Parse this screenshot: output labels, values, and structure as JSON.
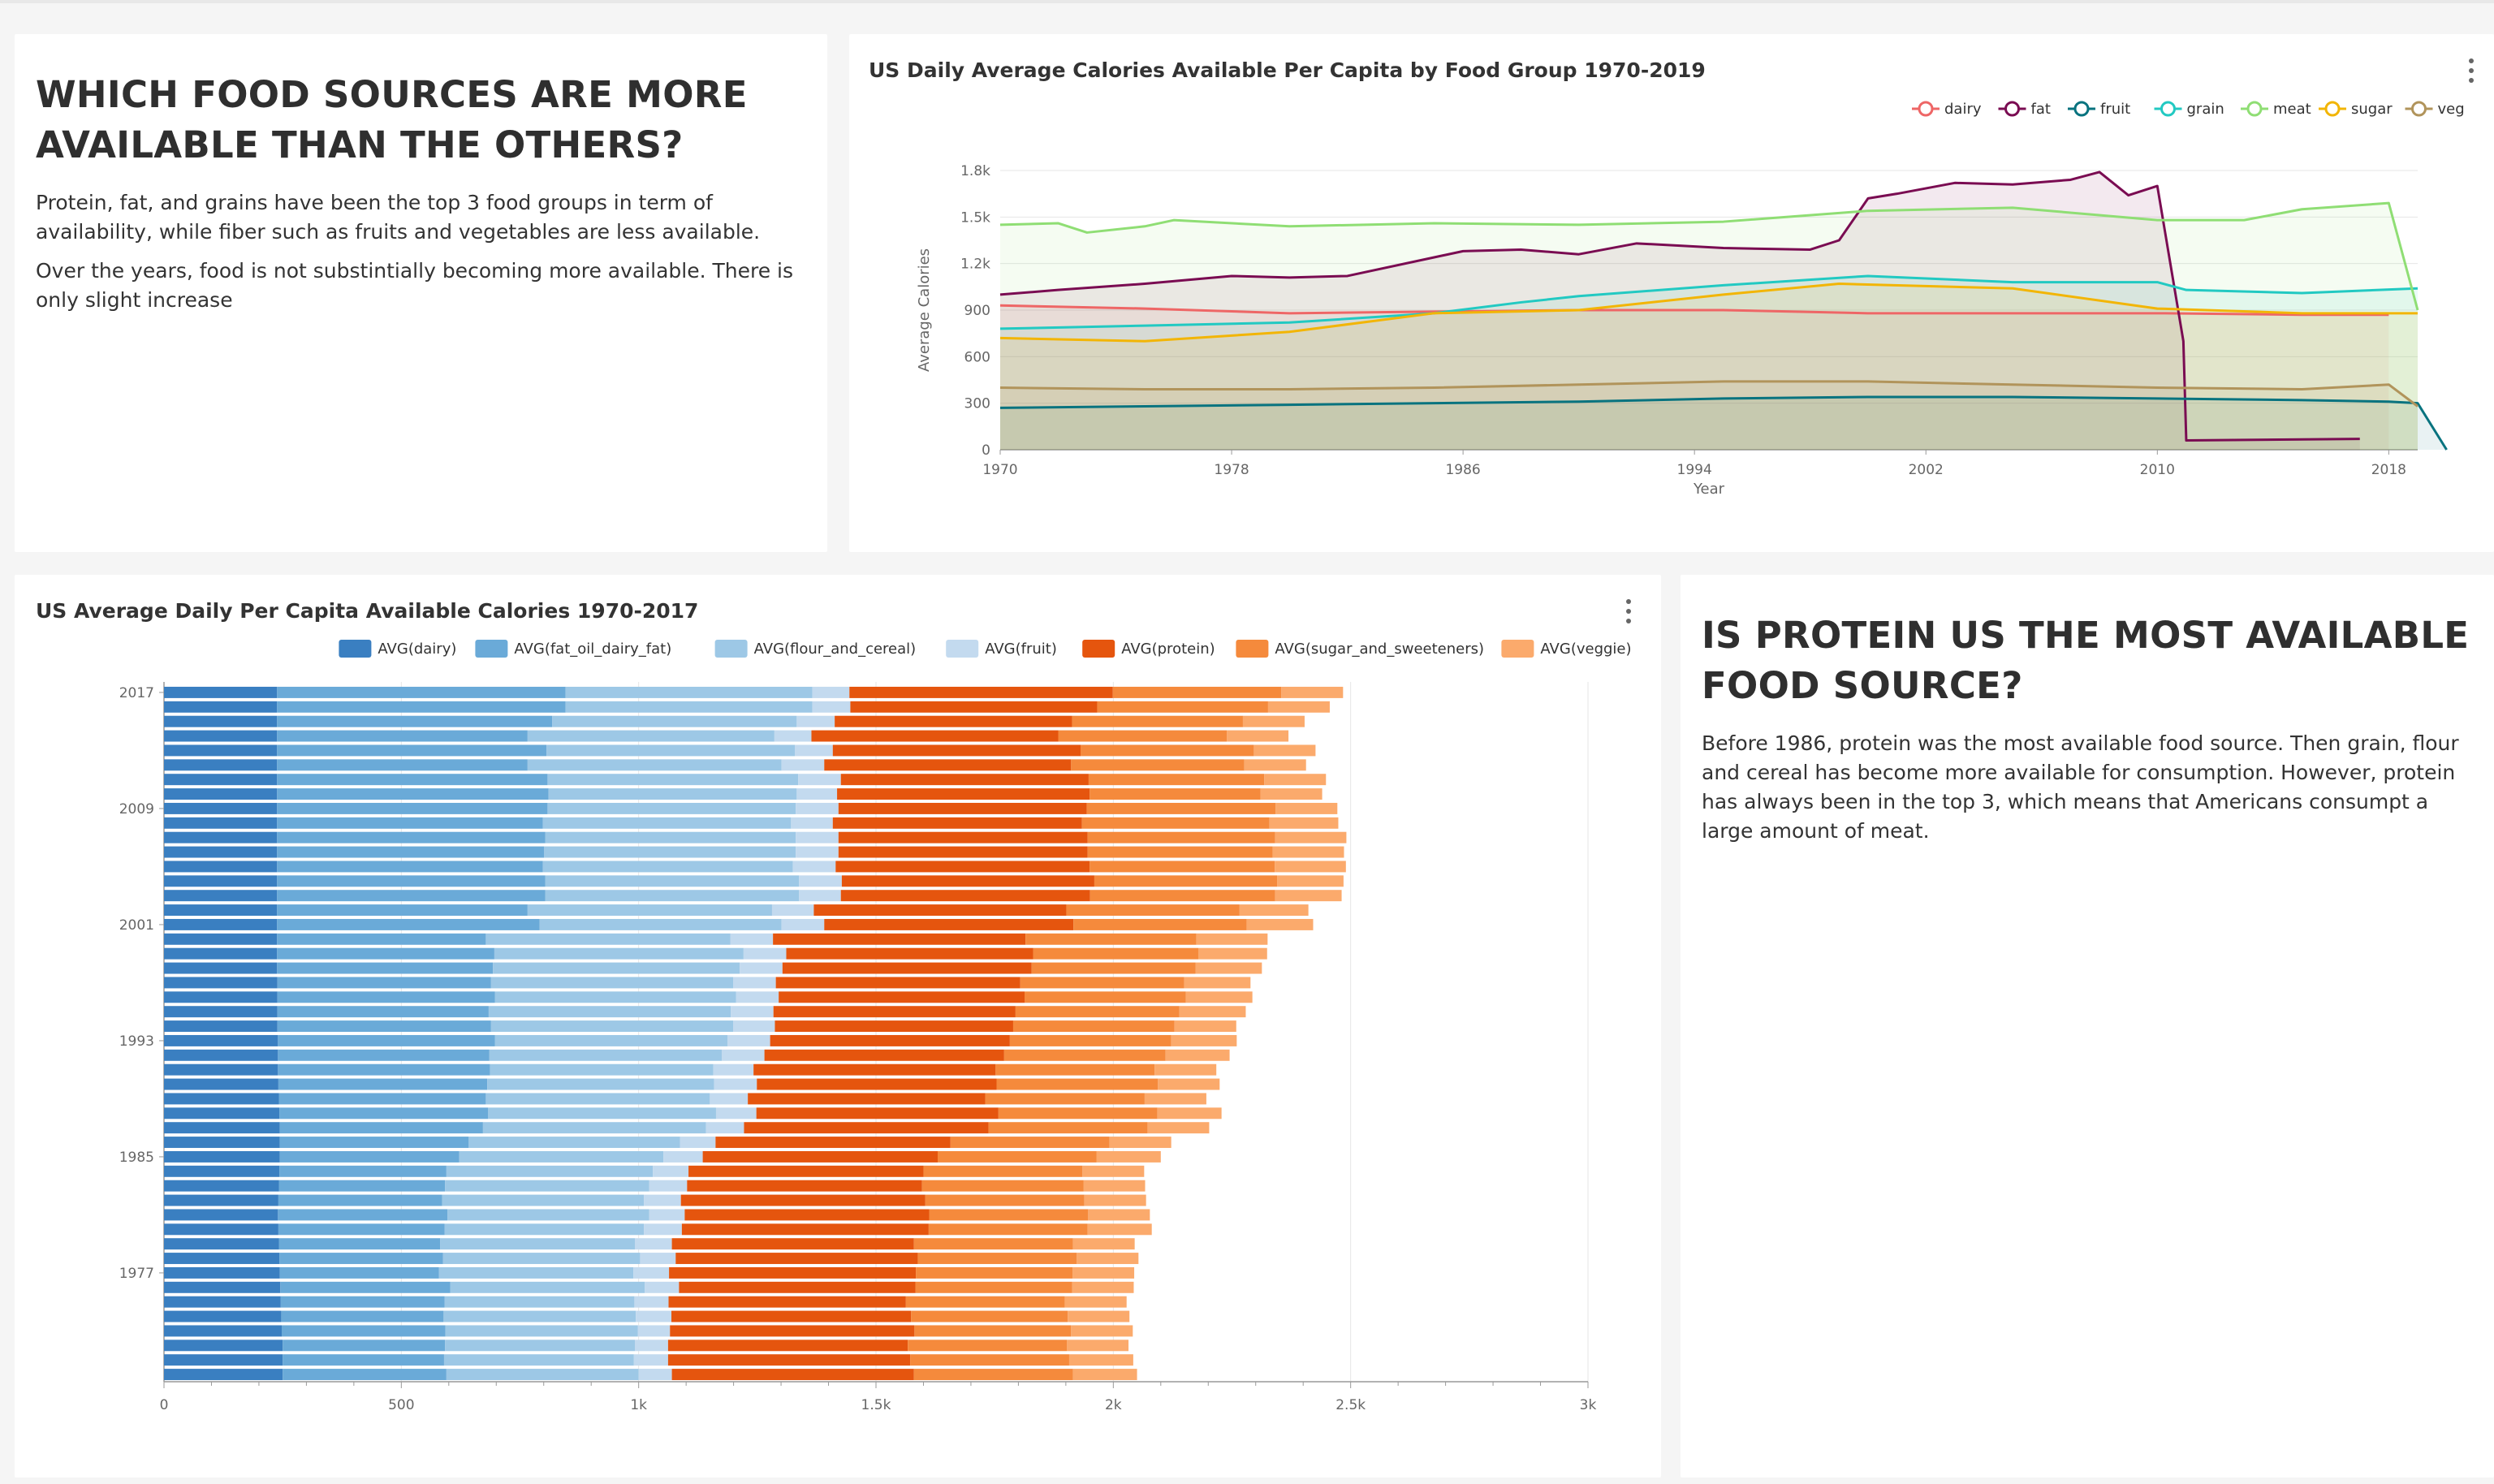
{
  "markdown_top": {
    "heading": "WHICH FOOD SOURCES ARE MORE AVAILABLE THAN THE OTHERS?",
    "paragraphs": [
      "Protein, fat, and grains have been the top 3 food groups in term of availability, while fiber such as fruits and vegetables are less available.",
      "Over the years, food is not substintially becoming more available. There is only slight increase"
    ]
  },
  "markdown_bottom": {
    "heading": "IS PROTEIN US THE MOST AVAILABLE FOOD SOURCE?",
    "paragraphs": [
      "Before 1986, protein was the most available food source. Then grain, flour and cereal has become more available for consumption. However, protein has always been in the top 3, which means that Americans consumpt a large amount of meat."
    ]
  },
  "chart_data": [
    {
      "type": "area",
      "title": "US Daily Average Calories Available Per Capita by Food Group 1970-2019",
      "xlabel": "Year",
      "ylabel": "Average Calories",
      "xlim": [
        1970,
        2019
      ],
      "ylim": [
        0,
        1800
      ],
      "x_ticks": [
        "1970",
        "1978",
        "1986",
        "1994",
        "2002",
        "2010",
        "2018"
      ],
      "y_ticks": [
        "0",
        "300",
        "600",
        "900",
        "1.2k",
        "1.5k",
        "1.8k"
      ],
      "legend_position": "top-right",
      "grid": true,
      "series": [
        {
          "name": "dairy",
          "color": "#ee6666",
          "x": [
            1970,
            1975,
            1980,
            1985,
            1990,
            1995,
            2000,
            2005,
            2010,
            2015,
            2018
          ],
          "values": [
            930,
            910,
            880,
            890,
            900,
            900,
            880,
            880,
            880,
            870,
            870
          ]
        },
        {
          "name": "fat",
          "color": "#7a0c52",
          "x": [
            1970,
            1972,
            1975,
            1978,
            1980,
            1982,
            1985,
            1986,
            1988,
            1990,
            1992,
            1995,
            1998,
            1999,
            2000,
            2001,
            2003,
            2005,
            2007,
            2008,
            2009,
            2010,
            2010.9,
            2011,
            2017
          ],
          "values": [
            1000,
            1030,
            1070,
            1120,
            1110,
            1120,
            1240,
            1280,
            1290,
            1260,
            1330,
            1300,
            1290,
            1350,
            1620,
            1650,
            1720,
            1710,
            1740,
            1790,
            1640,
            1700,
            700,
            60,
            70
          ]
        },
        {
          "name": "fruit",
          "color": "#08737f",
          "x": [
            1970,
            1975,
            1980,
            1985,
            1990,
            1995,
            2000,
            2005,
            2010,
            2015,
            2018,
            2019,
            2020
          ],
          "values": [
            270,
            280,
            290,
            300,
            310,
            330,
            340,
            340,
            330,
            320,
            310,
            300,
            0
          ]
        },
        {
          "name": "grain",
          "color": "#22c9c2",
          "x": [
            1970,
            1975,
            1980,
            1985,
            1988,
            1990,
            1995,
            2000,
            2005,
            2010,
            2011,
            2015,
            2019
          ],
          "values": [
            780,
            800,
            820,
            880,
            950,
            990,
            1060,
            1120,
            1080,
            1080,
            1030,
            1010,
            1040
          ]
        },
        {
          "name": "meat",
          "color": "#8fde74",
          "x": [
            1970,
            1972,
            1973,
            1975,
            1976,
            1980,
            1985,
            1990,
            1995,
            2000,
            2005,
            2010,
            2013,
            2015,
            2018,
            2019
          ],
          "values": [
            1450,
            1460,
            1400,
            1440,
            1480,
            1440,
            1460,
            1450,
            1470,
            1540,
            1560,
            1480,
            1480,
            1550,
            1590,
            900
          ]
        },
        {
          "name": "sugar",
          "color": "#f2b505",
          "x": [
            1970,
            1975,
            1980,
            1985,
            1990,
            1995,
            1999,
            2005,
            2010,
            2015,
            2019
          ],
          "values": [
            720,
            700,
            760,
            880,
            900,
            1000,
            1070,
            1040,
            910,
            880,
            880
          ]
        },
        {
          "name": "veg",
          "color": "#b1945b",
          "x": [
            1970,
            1975,
            1980,
            1985,
            1990,
            1995,
            2000,
            2005,
            2010,
            2015,
            2018,
            2019
          ],
          "values": [
            400,
            390,
            390,
            400,
            420,
            440,
            440,
            420,
            400,
            390,
            420,
            280
          ]
        }
      ]
    },
    {
      "type": "bar",
      "orientation": "horizontal",
      "stacked": true,
      "title": "US Average Daily Per Capita Available Calories 1970-2017",
      "xlim": [
        0,
        3000
      ],
      "x_ticks": [
        "0",
        "500",
        "1k",
        "1.5k",
        "2k",
        "2.5k",
        "3k"
      ],
      "y_ticks": [
        "2017",
        "2009",
        "2001",
        "1993",
        "1985",
        "1977"
      ],
      "legend_position": "top-right",
      "categories": [
        1970,
        1971,
        1972,
        1973,
        1974,
        1975,
        1976,
        1977,
        1978,
        1979,
        1980,
        1981,
        1982,
        1983,
        1984,
        1985,
        1986,
        1987,
        1988,
        1989,
        1990,
        1991,
        1992,
        1993,
        1994,
        1995,
        1996,
        1997,
        1998,
        1999,
        2000,
        2001,
        2002,
        2003,
        2004,
        2005,
        2006,
        2007,
        2008,
        2009,
        2010,
        2011,
        2012,
        2013,
        2014,
        2015,
        2016,
        2017
      ],
      "series": [
        {
          "name": "AVG(dairy)",
          "color": "#3a7fc1",
          "values": [
            250,
            250,
            250,
            248,
            247,
            246,
            245,
            244,
            243,
            242,
            241,
            240,
            241,
            242,
            243,
            244,
            244,
            244,
            243,
            242,
            241,
            240,
            240,
            240,
            239,
            239,
            239,
            239,
            238,
            238,
            238,
            238,
            238,
            238,
            238,
            238,
            238,
            238,
            238,
            238,
            238,
            238,
            238,
            238,
            238,
            238,
            238,
            238
          ]
        },
        {
          "name": "AVG(fat_oil_dairy_fat)",
          "color": "#6aaad8",
          "values": [
            345,
            340,
            342,
            345,
            342,
            345,
            358,
            335,
            345,
            340,
            350,
            357,
            345,
            350,
            352,
            378,
            398,
            428,
            440,
            436,
            440,
            447,
            445,
            457,
            450,
            445,
            458,
            450,
            455,
            458,
            440,
            553,
            528,
            565,
            565,
            560,
            563,
            565,
            560,
            570,
            572,
            570,
            528,
            568,
            528,
            580,
            608,
            608
          ]
        },
        {
          "name": "AVG(flour_and_cereal)",
          "color": "#9dc8e6",
          "values": [
            405,
            400,
            400,
            405,
            405,
            400,
            410,
            410,
            415,
            410,
            420,
            425,
            425,
            430,
            435,
            430,
            445,
            470,
            480,
            472,
            478,
            470,
            490,
            490,
            510,
            510,
            508,
            510,
            520,
            525,
            515,
            510,
            515,
            535,
            535,
            527,
            530,
            528,
            523,
            523,
            523,
            528,
            535,
            523,
            520,
            515,
            520,
            520
          ]
        },
        {
          "name": "AVG(fruit)",
          "color": "#c3daef",
          "values": [
            70,
            72,
            70,
            68,
            75,
            72,
            72,
            75,
            75,
            78,
            80,
            75,
            78,
            80,
            75,
            83,
            75,
            80,
            85,
            80,
            90,
            85,
            90,
            90,
            88,
            90,
            90,
            90,
            90,
            90,
            90,
            90,
            88,
            88,
            90,
            90,
            90,
            90,
            88,
            90,
            85,
            90,
            90,
            80,
            78,
            80,
            80,
            78
          ]
        },
        {
          "name": "AVG(protein)",
          "color": "#e5550e",
          "values": [
            510,
            510,
            505,
            515,
            505,
            500,
            498,
            520,
            510,
            510,
            520,
            515,
            515,
            495,
            495,
            495,
            495,
            515,
            510,
            500,
            505,
            510,
            505,
            505,
            502,
            510,
            518,
            515,
            525,
            520,
            532,
            525,
            532,
            525,
            532,
            535,
            525,
            525,
            525,
            523,
            532,
            522,
            520,
            522,
            520,
            500,
            520,
            555
          ]
        },
        {
          "name": "AVG(sugar_and_sweeteners)",
          "color": "#f58a3c",
          "values": [
            335,
            335,
            335,
            330,
            330,
            335,
            330,
            330,
            335,
            335,
            335,
            335,
            335,
            340,
            335,
            335,
            335,
            335,
            335,
            336,
            340,
            335,
            340,
            340,
            340,
            345,
            340,
            345,
            345,
            348,
            360,
            365,
            365,
            390,
            385,
            390,
            390,
            395,
            395,
            398,
            360,
            370,
            365,
            365,
            355,
            360,
            360,
            355
          ]
        },
        {
          "name": "AVG(veggie)",
          "color": "#fbaa6c",
          "values": [
            135,
            135,
            130,
            130,
            130,
            130,
            130,
            130,
            130,
            130,
            135,
            130,
            130,
            130,
            130,
            135,
            130,
            130,
            135,
            130,
            130,
            130,
            135,
            138,
            130,
            140,
            140,
            140,
            140,
            145,
            150,
            140,
            145,
            140,
            140,
            150,
            150,
            150,
            145,
            130,
            130,
            130,
            130,
            130,
            130,
            130,
            130,
            130
          ]
        }
      ]
    }
  ]
}
